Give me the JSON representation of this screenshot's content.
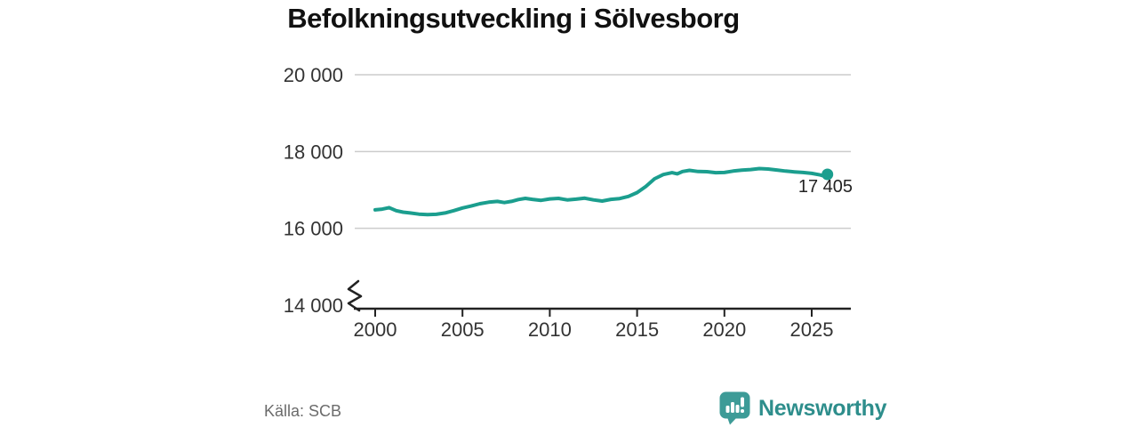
{
  "chart_data": {
    "type": "line",
    "title": "Befolkningsutveckling i Sölvesborg",
    "xlabel": "",
    "ylabel": "",
    "grid": "horizontal",
    "legend": "none",
    "axis_break": true,
    "xlim": [
      1999.8,
      2027.2
    ],
    "ylim": [
      13950,
      20000
    ],
    "end_label": "17 405",
    "end_value": 17405,
    "y_ticks": [
      {
        "value": 20000,
        "label": "20 000",
        "gridline": true
      },
      {
        "value": 18000,
        "label": "18 000",
        "gridline": true
      },
      {
        "value": 16000,
        "label": "16 000",
        "gridline": true
      },
      {
        "value": 14000,
        "label": "14 000",
        "gridline": false
      }
    ],
    "x_ticks": [
      {
        "value": 2000,
        "label": "2000"
      },
      {
        "value": 2005,
        "label": "2005"
      },
      {
        "value": 2010,
        "label": "2010"
      },
      {
        "value": 2015,
        "label": "2015"
      },
      {
        "value": 2020,
        "label": "2020"
      },
      {
        "value": 2025,
        "label": "2025"
      }
    ],
    "points": [
      [
        2000,
        16480
      ],
      [
        2000.4,
        16500
      ],
      [
        2000.8,
        16540
      ],
      [
        2001.2,
        16460
      ],
      [
        2001.6,
        16420
      ],
      [
        2002,
        16400
      ],
      [
        2002.5,
        16370
      ],
      [
        2003,
        16355
      ],
      [
        2003.5,
        16365
      ],
      [
        2004,
        16400
      ],
      [
        2004.5,
        16460
      ],
      [
        2005,
        16530
      ],
      [
        2005.5,
        16580
      ],
      [
        2006,
        16640
      ],
      [
        2006.5,
        16680
      ],
      [
        2007,
        16700
      ],
      [
        2007.4,
        16670
      ],
      [
        2007.8,
        16700
      ],
      [
        2008.2,
        16750
      ],
      [
        2008.6,
        16780
      ],
      [
        2009,
        16755
      ],
      [
        2009.5,
        16730
      ],
      [
        2010,
        16765
      ],
      [
        2010.5,
        16780
      ],
      [
        2011,
        16740
      ],
      [
        2011.5,
        16760
      ],
      [
        2012,
        16785
      ],
      [
        2012.5,
        16740
      ],
      [
        2013,
        16710
      ],
      [
        2013.5,
        16755
      ],
      [
        2014,
        16775
      ],
      [
        2014.5,
        16830
      ],
      [
        2015,
        16930
      ],
      [
        2015.5,
        17090
      ],
      [
        2016,
        17290
      ],
      [
        2016.5,
        17400
      ],
      [
        2017,
        17450
      ],
      [
        2017.3,
        17420
      ],
      [
        2017.6,
        17480
      ],
      [
        2018,
        17510
      ],
      [
        2018.5,
        17480
      ],
      [
        2019,
        17475
      ],
      [
        2019.5,
        17450
      ],
      [
        2020,
        17455
      ],
      [
        2020.5,
        17490
      ],
      [
        2021,
        17515
      ],
      [
        2021.5,
        17530
      ],
      [
        2022,
        17555
      ],
      [
        2022.5,
        17545
      ],
      [
        2023,
        17520
      ],
      [
        2023.5,
        17490
      ],
      [
        2024,
        17470
      ],
      [
        2024.5,
        17455
      ],
      [
        2025,
        17430
      ],
      [
        2025.5,
        17390
      ],
      [
        2025.75,
        17355
      ],
      [
        2025.9,
        17405
      ]
    ]
  },
  "footer": {
    "source": "Källa: SCB",
    "logo_text": "Newsworthy"
  },
  "colors": {
    "line": "#1b9e8e",
    "grid": "#cccccc",
    "axis": "#222222",
    "axis_text": "#333333",
    "title": "#111111",
    "end_label": "#222222",
    "source_text": "#6b6b6b",
    "logo_text": "#2e8e8c",
    "logo_icon": "#3d9b97"
  }
}
